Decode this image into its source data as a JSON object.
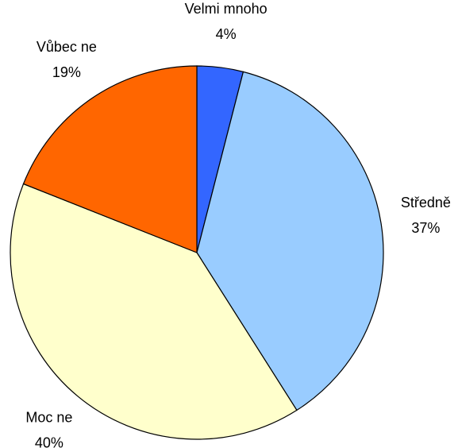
{
  "chart_data": {
    "type": "pie",
    "categories": [
      "Velmi mnoho",
      "Středně",
      "Moc ne",
      "Vůbec ne"
    ],
    "values": [
      4,
      37,
      40,
      19
    ],
    "value_labels": [
      "4%",
      "37%",
      "40%",
      "19%"
    ],
    "colors": [
      "#3366ff",
      "#99ccff",
      "#ffffcc",
      "#ff6600"
    ]
  }
}
